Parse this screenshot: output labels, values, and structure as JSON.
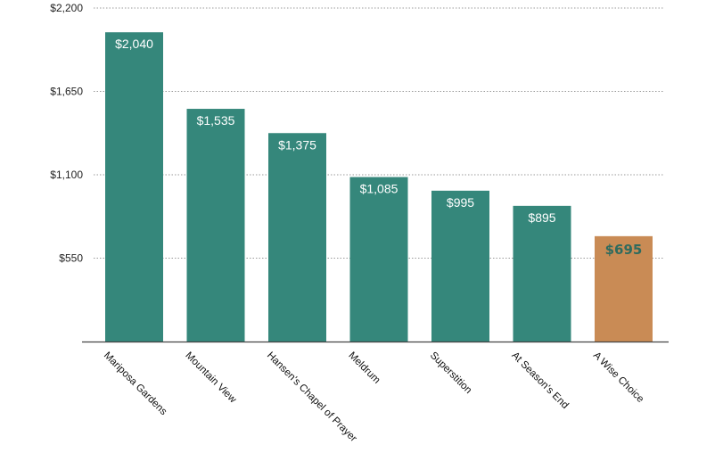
{
  "chart_data": {
    "type": "bar",
    "title": "",
    "xlabel": "",
    "ylabel": "",
    "ylim": [
      0,
      2200
    ],
    "yticks": [
      550,
      1100,
      1650,
      2200
    ],
    "ytick_labels": [
      "$550",
      "$1,100",
      "$1,650",
      "$2,200"
    ],
    "grid": true,
    "categories": [
      "Mariposa Gardens",
      "Mountain View",
      "Hansen's Chapel of Prayer",
      "Meldrum",
      "Superstition",
      "At Season's End",
      "A Wise Choice"
    ],
    "values": [
      2040,
      1535,
      1375,
      1085,
      995,
      895,
      695
    ],
    "data_labels": [
      "$2,040",
      "$1,535",
      "$1,375",
      "$1,085",
      "$995",
      "$895",
      "$695"
    ],
    "colors": {
      "default_bar": "#35877b",
      "highlight_bar": "#c98b55",
      "highlight_label": "#2f6b5e",
      "grid": "#999999"
    },
    "highlight_index": 6
  }
}
